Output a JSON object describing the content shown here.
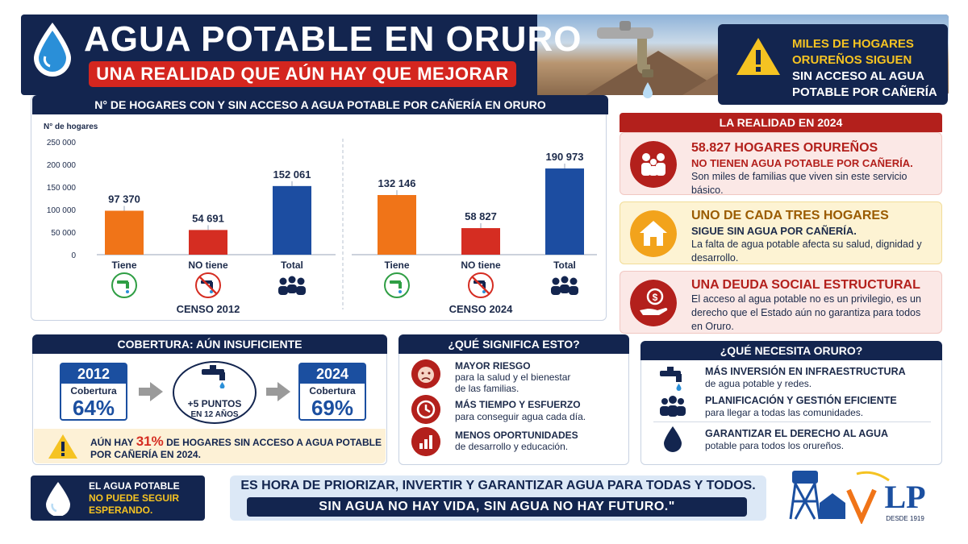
{
  "header": {
    "title": "AGUA POTABLE EN ORURO",
    "subtitle": "UNA REALIDAD QUE AÚN HAY QUE MEJORAR",
    "alert_line1": "MILES DE HOGARES",
    "alert_line2": "ORUREÑOS SIGUEN",
    "alert_line3": "SIN ACCESO AL AGUA",
    "alert_line4": "POTABLE POR CAÑERÍA"
  },
  "chart_data": {
    "type": "bar",
    "title": "N° DE HOGARES CON Y SIN ACCESO A AGUA POTABLE POR CAÑERÍA EN ORURO",
    "ylabel": "N° de hogares",
    "ylim": [
      0,
      250000
    ],
    "yticks": [
      "0",
      "50 000",
      "100 000",
      "150 000",
      "200 000",
      "250 000"
    ],
    "groups": [
      {
        "name": "CENSO 2012",
        "categories": [
          "Tiene",
          "NO tiene",
          "Total"
        ],
        "values": [
          97370,
          54691,
          152061
        ],
        "labels": [
          "97 370",
          "54 691",
          "152 061"
        ],
        "colors": [
          "#f07418",
          "#d52d22",
          "#1c4da1"
        ],
        "icons": [
          "faucet-check-icon",
          "faucet-crossed-icon",
          "people-icon"
        ]
      },
      {
        "name": "CENSO 2024",
        "categories": [
          "Tiene",
          "NO tiene",
          "Total"
        ],
        "values": [
          132146,
          58827,
          190973
        ],
        "labels": [
          "132 146",
          "58 827",
          "190 973"
        ],
        "colors": [
          "#f07418",
          "#d52d22",
          "#1c4da1"
        ],
        "icons": [
          "faucet-check-icon",
          "faucet-crossed-icon",
          "people-icon"
        ]
      }
    ]
  },
  "reality": {
    "header": "LA REALIDAD EN 2024",
    "cards": [
      {
        "t1": "58.827 HOGARES ORUREÑOS",
        "t2": "NO TIENEN AGUA POTABLE POR CAÑERÍA.",
        "t3": "Son miles de familias que viven sin este servicio básico.",
        "icon": "family-icon"
      },
      {
        "t1": "UNO DE CADA TRES HOGARES",
        "t2": "SIGUE SIN AGUA POR CAÑERÍA.",
        "t3": "La falta de agua potable afecta su salud, dignidad y desarrollo.",
        "icon": "house-icon"
      },
      {
        "t1": "UNA DEUDA SOCIAL ESTRUCTURAL",
        "t2": "",
        "t3": "El acceso al agua potable no es un privilegio, es un derecho que el Estado aún no garantiza para todos en Oruro.",
        "icon": "money-hand-icon"
      }
    ]
  },
  "coverage": {
    "header": "COBERTURA: AÚN INSUFICIENTE",
    "year1": "2012",
    "label1": "Cobertura",
    "pct1": "64%",
    "year2": "2024",
    "label2": "Cobertura",
    "pct2": "69%",
    "middle1": "+5 PUNTOS",
    "middle2": "EN 12 AÑOS",
    "warn_pre": "AÚN HAY",
    "warn_pct": "31%",
    "warn_post": "DE HOGARES SIN ACCESO A AGUA POTABLE",
    "warn_line2": "POR CAÑERÍA EN 2024."
  },
  "meaning": {
    "header": "¿QUÉ SIGNIFICA ESTO?",
    "items": [
      {
        "t1": "MAYOR RIESGO",
        "t2a": "para la salud y el bienestar",
        "t2b": "de las familias.",
        "icon": "sick-face-icon"
      },
      {
        "t1": "MÁS TIEMPO Y ESFUERZO",
        "t2a": "para conseguir agua cada día.",
        "t2b": "",
        "icon": "clock-icon"
      },
      {
        "t1": "MENOS OPORTUNIDADES",
        "t2a": "de desarrollo y educación.",
        "t2b": "",
        "icon": "bar-chart-icon"
      }
    ]
  },
  "needs": {
    "header": "¿QUÉ NECESITA ORURO?",
    "items": [
      {
        "t1": "MÁS INVERSIÓN EN INFRAESTRUCTURA",
        "t2": "de agua potable y redes.",
        "icon": "faucet-icon"
      },
      {
        "t1": "PLANIFICACIÓN Y GESTIÓN EFICIENTE",
        "t2": "para llegar a todas las comunidades.",
        "icon": "people-icon"
      },
      {
        "t1": "GARANTIZAR EL DERECHO AL AGUA",
        "t2": "potable para todos los orureños.",
        "icon": "water-drop-icon"
      }
    ]
  },
  "footer": {
    "left1": "EL AGUA POTABLE",
    "left2": "NO PUEDE SEGUIR",
    "left3": "ESPERANDO.",
    "main": "ES HORA DE PRIORIZAR, INVERTIR Y GARANTIZAR AGUA PARA TODAS Y TODOS.",
    "quote": "SIN AGUA NO HAY VIDA, SIN AGUA NO HAY FUTURO.\"",
    "logo_text": "LP",
    "logo_sub": "DESDE 1919"
  }
}
